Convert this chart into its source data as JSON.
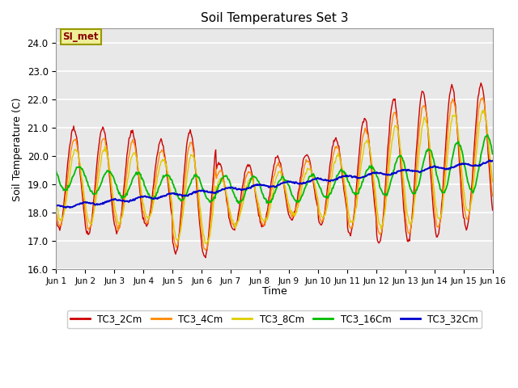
{
  "title": "Soil Temperatures Set 3",
  "xlabel": "Time",
  "ylabel": "Soil Temperature (C)",
  "ylim": [
    16.0,
    24.5
  ],
  "yticks": [
    16.0,
    17.0,
    18.0,
    19.0,
    20.0,
    21.0,
    22.0,
    23.0,
    24.0
  ],
  "xtick_labels": [
    "Jun 1",
    "Jun 2",
    "Jun 3",
    "Jun 4",
    "Jun 5",
    "Jun 6",
    "Jun 7",
    "Jun 8",
    "Jun 9",
    "Jun 10",
    "Jun 11",
    "Jun 12",
    "Jun 13",
    "Jun 14",
    "Jun 15",
    "Jun 16"
  ],
  "colors": {
    "TC3_2Cm": "#cc0000",
    "TC3_4Cm": "#ff8800",
    "TC3_8Cm": "#ddcc00",
    "TC3_16Cm": "#00bb00",
    "TC3_32Cm": "#0000cc"
  },
  "annotation_text": "SI_met",
  "annotation_bg": "#eeee99",
  "annotation_border": "#999900",
  "plot_bg": "#e8e8e8",
  "days": 15,
  "n_points": 600
}
